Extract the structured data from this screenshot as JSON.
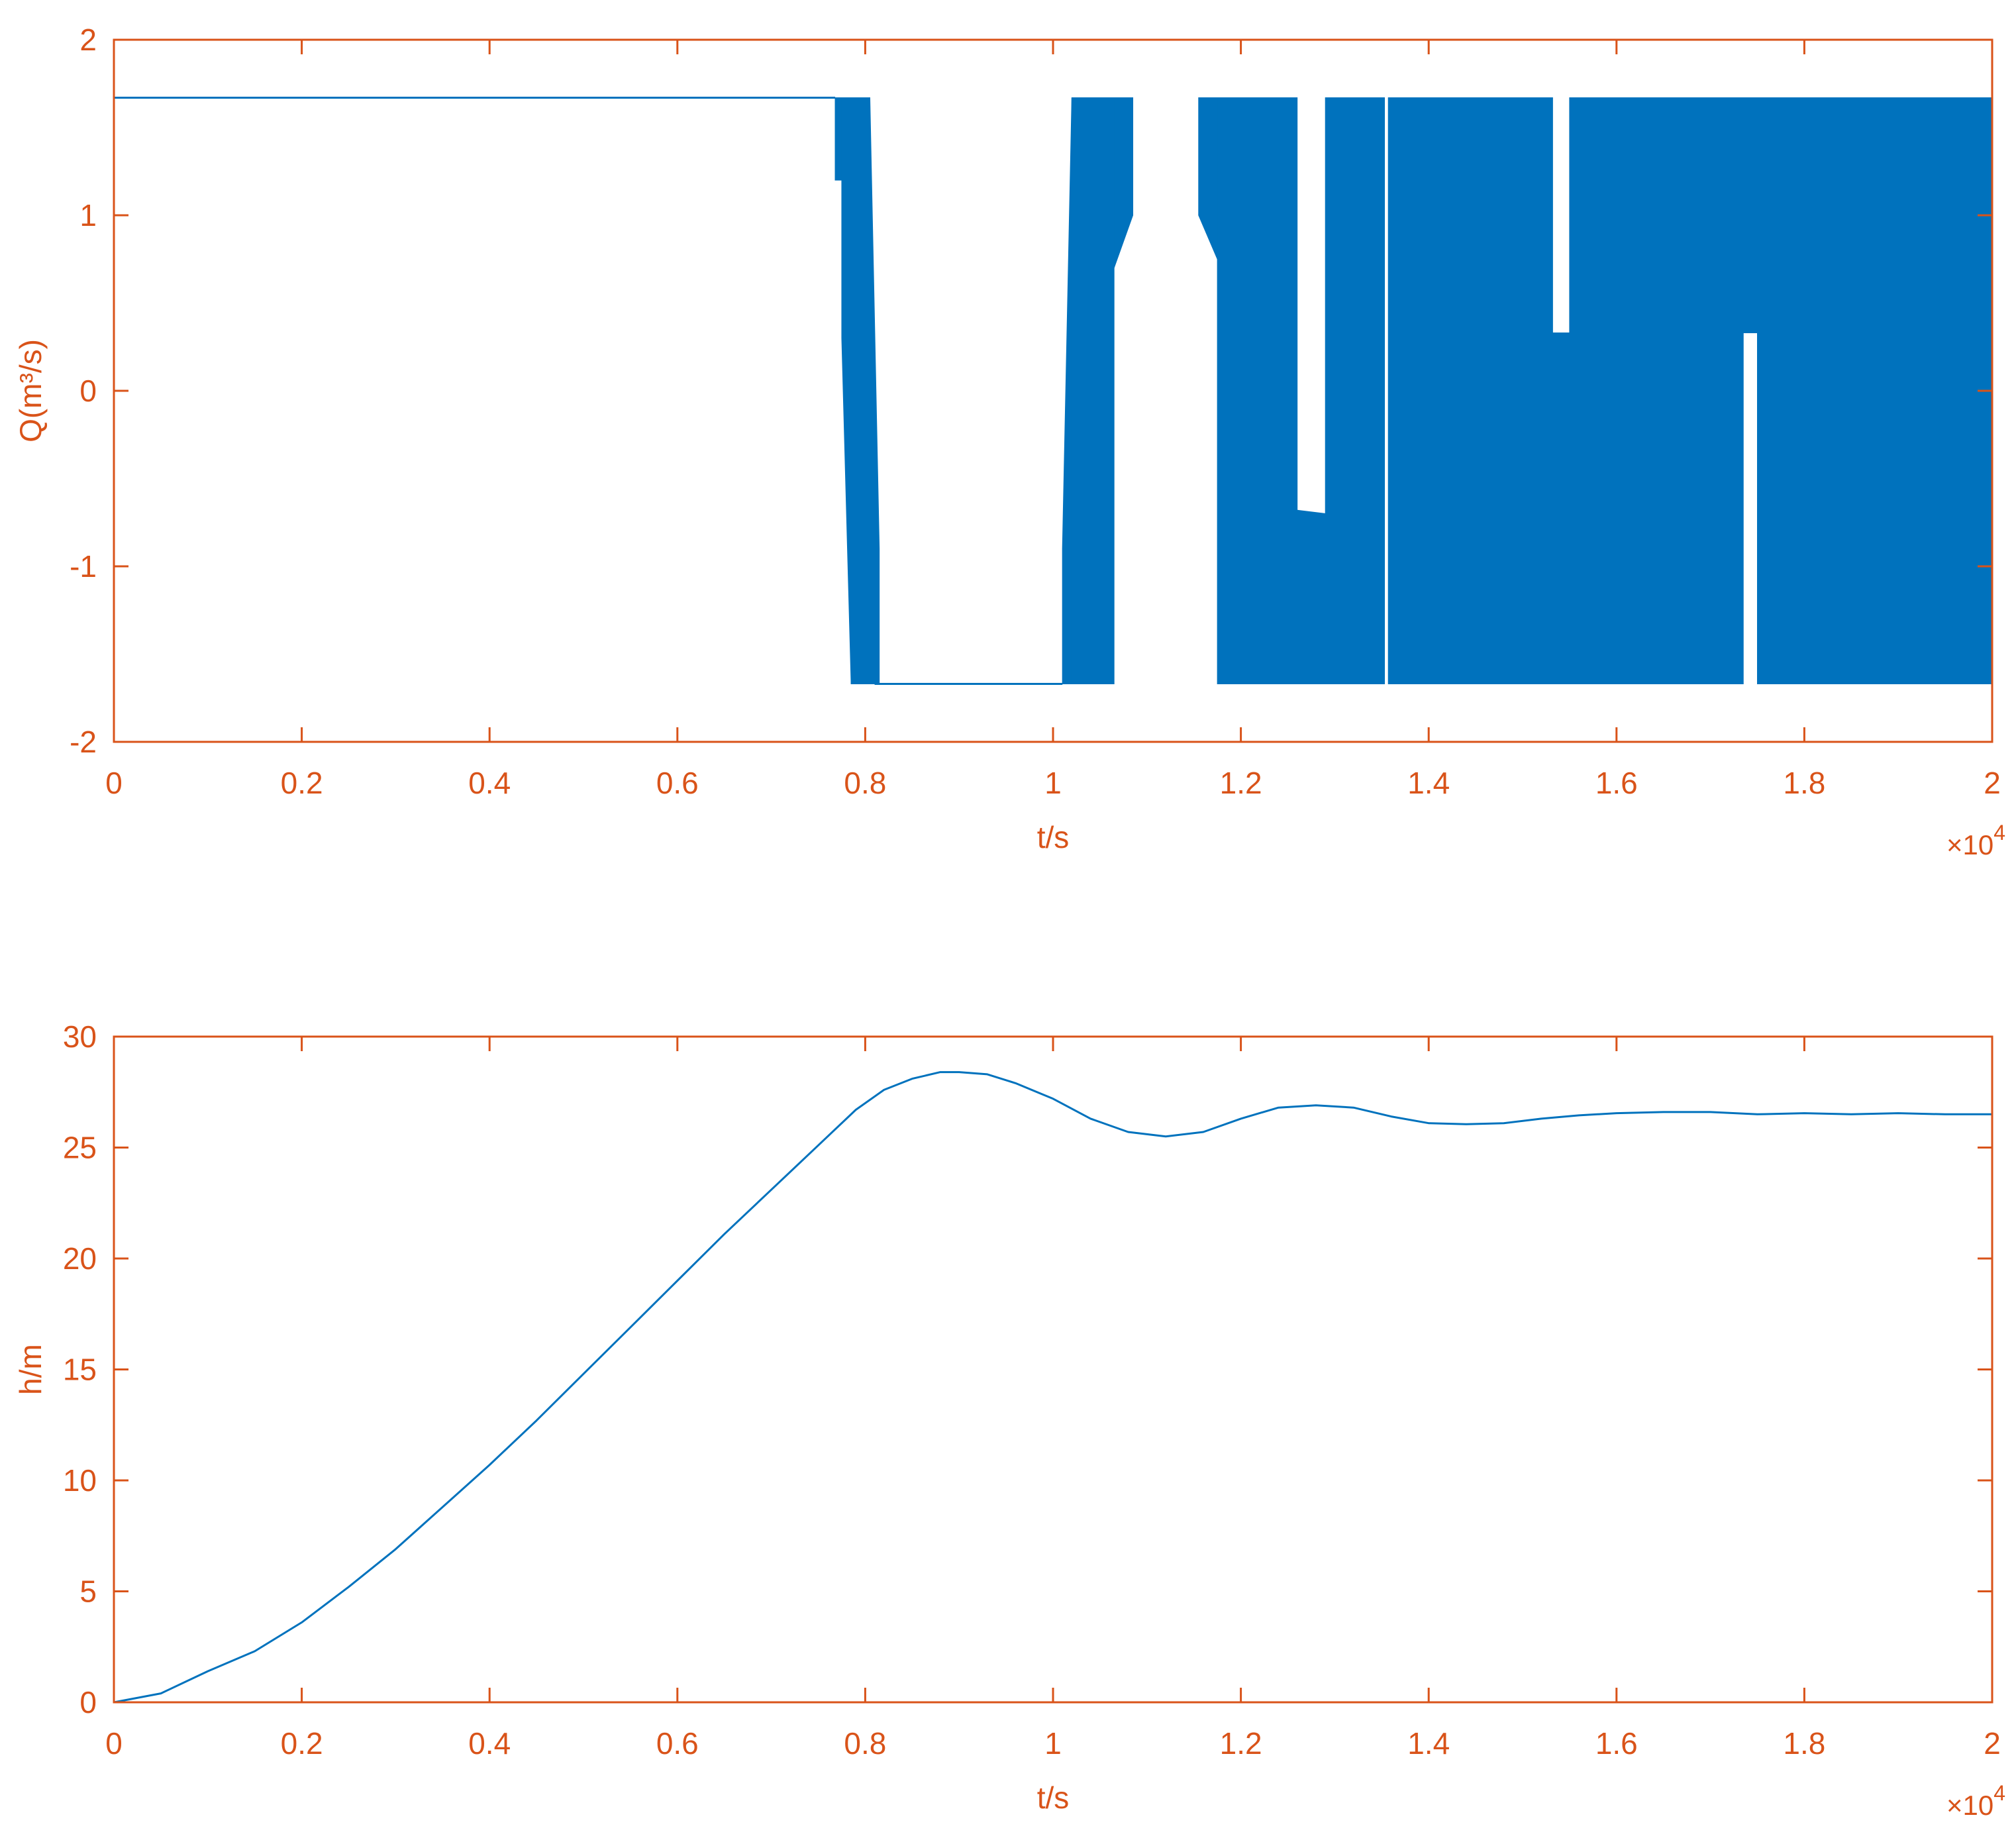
{
  "figure": {
    "axis_color": "#D95319",
    "line_color": "#0072BD",
    "background": "#FFFFFF"
  },
  "chart_data": [
    {
      "type": "area",
      "ylabel": "Q(m³/s)",
      "xlabel": "t/s",
      "x_exponent_base": "×10",
      "x_exponent_power": "4",
      "xlim": [
        0,
        20000
      ],
      "ylim": [
        -2,
        2
      ],
      "xticks": [
        0,
        2000,
        4000,
        6000,
        8000,
        10000,
        12000,
        14000,
        16000,
        18000,
        20000
      ],
      "xtick_labels": [
        "0",
        "0.2",
        "0.4",
        "0.6",
        "0.8",
        "1",
        "1.2",
        "1.4",
        "1.6",
        "1.8",
        "2"
      ],
      "yticks": [
        -2,
        -1,
        0,
        1,
        2
      ],
      "ytick_labels": [
        "-2",
        "-1",
        "0",
        "1",
        "2"
      ],
      "grid": false,
      "constant_segments": [
        {
          "x": [
            0,
            7680
          ],
          "y": 1.67
        },
        {
          "x": [
            8100,
            10100
          ],
          "y": -1.67
        }
      ],
      "oscillation_bands": [
        {
          "x": [
            7680,
            7750
          ],
          "upper": [
            1.67,
            1.67
          ],
          "lower": [
            1.2,
            1.2
          ]
        },
        {
          "x": [
            7750,
            7850
          ],
          "upper": [
            1.67,
            1.67
          ],
          "lower": [
            0.3,
            -1.67
          ]
        },
        {
          "x": [
            7850,
            8050
          ],
          "upper": [
            1.67,
            1.67
          ],
          "lower": [
            -1.67,
            -1.67
          ]
        },
        {
          "x": [
            8050,
            8150
          ],
          "upper": [
            1.67,
            -0.9
          ],
          "lower": [
            -1.67,
            -1.67
          ]
        },
        {
          "x": [
            10100,
            10200
          ],
          "upper": [
            -0.9,
            1.67
          ],
          "lower": [
            -1.67,
            -1.67
          ]
        },
        {
          "x": [
            10200,
            10650
          ],
          "upper": [
            1.67,
            1.67
          ],
          "lower": [
            -1.67,
            -1.67
          ]
        },
        {
          "x": [
            10650,
            10850
          ],
          "upper": [
            1.67,
            1.67
          ],
          "lower": [
            0.7,
            1.0
          ]
        },
        {
          "x": [
            11550,
            11750
          ],
          "upper": [
            1.67,
            1.67
          ],
          "lower": [
            1.0,
            0.75
          ]
        },
        {
          "x": [
            11750,
            12600
          ],
          "upper": [
            1.67,
            1.67
          ],
          "lower": [
            -1.67,
            -1.67
          ]
        },
        {
          "x": [
            12600,
            12900
          ],
          "upper": [
            -0.68,
            -0.7
          ],
          "lower": [
            -1.67,
            -1.67
          ]
        },
        {
          "x": [
            12900,
            13530
          ],
          "upper": [
            1.67,
            1.67
          ],
          "lower": [
            -1.67,
            -1.67
          ]
        },
        {
          "x": [
            13570,
            15320
          ],
          "upper": [
            1.67,
            1.67
          ],
          "lower": [
            -1.67,
            -1.67
          ]
        },
        {
          "x": [
            15320,
            15500
          ],
          "upper": [
            0.33,
            0.33
          ],
          "lower": [
            -1.67,
            -1.67
          ]
        },
        {
          "x": [
            15500,
            17350
          ],
          "upper": [
            1.67,
            1.67
          ],
          "lower": [
            -1.67,
            -1.67
          ]
        },
        {
          "x": [
            17350,
            17500
          ],
          "upper": [
            1.67,
            1.67
          ],
          "lower": [
            0.33,
            0.33
          ]
        },
        {
          "x": [
            17500,
            20000
          ],
          "upper": [
            1.67,
            1.67
          ],
          "lower": [
            -1.67,
            -1.67
          ]
        }
      ]
    },
    {
      "type": "line",
      "ylabel": "h/m",
      "xlabel": "t/s",
      "x_exponent_base": "×10",
      "x_exponent_power": "4",
      "xlim": [
        0,
        20000
      ],
      "ylim": [
        0,
        30
      ],
      "xticks": [
        0,
        2000,
        4000,
        6000,
        8000,
        10000,
        12000,
        14000,
        16000,
        18000,
        20000
      ],
      "xtick_labels": [
        "0",
        "0.2",
        "0.4",
        "0.6",
        "0.8",
        "1",
        "1.2",
        "1.4",
        "1.6",
        "1.8",
        "2"
      ],
      "yticks": [
        0,
        5,
        10,
        15,
        20,
        25,
        30
      ],
      "ytick_labels": [
        "0",
        "5",
        "10",
        "15",
        "20",
        "25",
        "30"
      ],
      "grid": false,
      "series": [
        {
          "x": [
            0,
            500,
            1000,
            1500,
            2000,
            2500,
            3000,
            3500,
            4000,
            4500,
            5000,
            5500,
            6000,
            6500,
            7000,
            7500,
            7900,
            8200,
            8500,
            8800,
            9000,
            9300,
            9600,
            10000,
            10400,
            10800,
            11200,
            11600,
            12000,
            12400,
            12800,
            13200,
            13600,
            14000,
            14400,
            14800,
            15200,
            15600,
            16000,
            16500,
            17000,
            17500,
            18000,
            18500,
            19000,
            19500,
            20000
          ],
          "y": [
            0,
            0.4,
            1.4,
            2.3,
            3.6,
            5.2,
            6.9,
            8.8,
            10.7,
            12.7,
            14.8,
            16.9,
            19.0,
            21.1,
            23.1,
            25.1,
            26.7,
            27.6,
            28.1,
            28.4,
            28.4,
            28.3,
            27.9,
            27.2,
            26.3,
            25.7,
            25.5,
            25.7,
            26.3,
            26.8,
            26.9,
            26.8,
            26.4,
            26.1,
            26.05,
            26.1,
            26.3,
            26.45,
            26.55,
            26.6,
            26.6,
            26.5,
            26.55,
            26.5,
            26.55,
            26.5,
            26.5
          ]
        }
      ]
    }
  ]
}
